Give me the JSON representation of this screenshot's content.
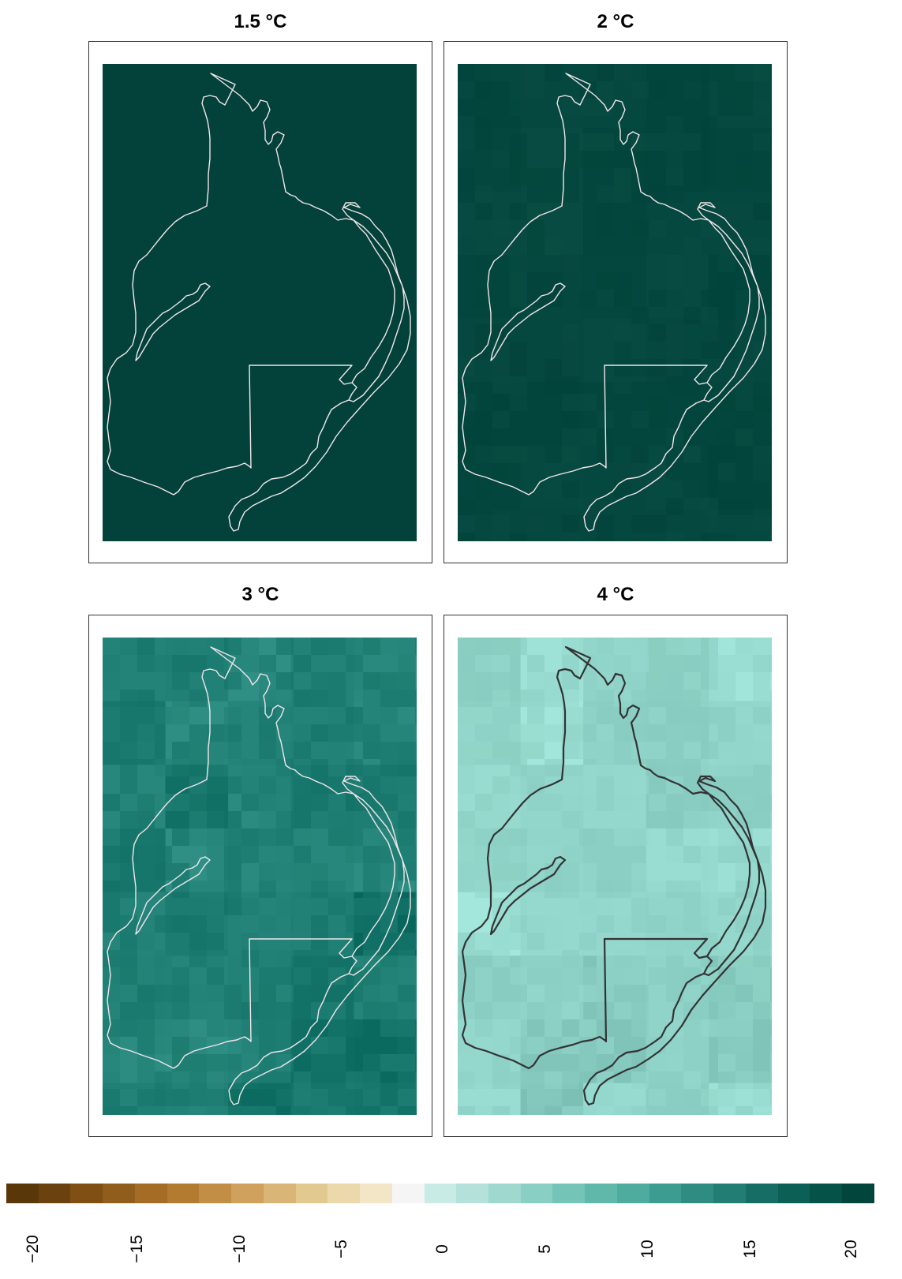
{
  "panels": [
    {
      "title": "1.5 °C",
      "fill": "#02423a",
      "outline": "#f2e6ea",
      "noise": 0.0,
      "checker": 0.0
    },
    {
      "title": "2 °C",
      "fill": "#05483f",
      "outline": "#f2e6ea",
      "noise": 0.15,
      "checker": 0.05
    },
    {
      "title": "3 °C",
      "fill": "#1c7b70",
      "outline": "#f2e6ea",
      "noise": 0.35,
      "checker": 0.35
    },
    {
      "title": "4 °C",
      "fill": "#8fd2c7",
      "outline": "#333333",
      "noise": 0.25,
      "checker": 0.35
    }
  ],
  "legend": {
    "colors": [
      "#593708",
      "#6b4110",
      "#7f4f14",
      "#915d1c",
      "#a46c24",
      "#b37b30",
      "#c28d44",
      "#cfa15d",
      "#d9b677",
      "#e2c990",
      "#ebd9ab",
      "#f2e6c6",
      "#f5f5f5",
      "#c9ebe5",
      "#b4e1da",
      "#9fd8cf",
      "#8acfc4",
      "#74c4b8",
      "#60b8ab",
      "#4dac9e",
      "#3c9c8f",
      "#2e8c80",
      "#227d72",
      "#166d63",
      "#0b5f55",
      "#045248",
      "#01453c"
    ],
    "ticks": [
      "−20",
      "−15",
      "−10",
      "−5",
      "0",
      "5",
      "10",
      "15",
      "20"
    ]
  }
}
